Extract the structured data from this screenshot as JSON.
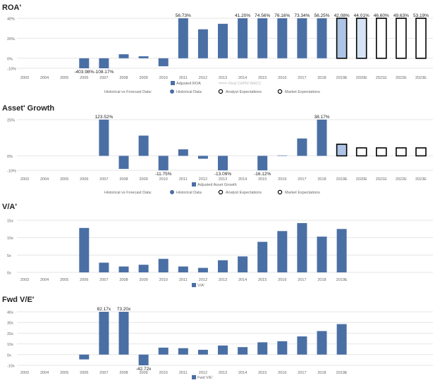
{
  "colors": {
    "historical": "#4a6fa5",
    "analyst_fill": "#adc4e6",
    "analyst_fill_light": "#d6e3f5",
    "market_stroke": "#000000",
    "grid": "#e6e6e6",
    "axis_text": "#666666"
  },
  "legend_text": {
    "hist_vs_forecast": "Historical vs Forecast Data:",
    "historical": "Historical Data",
    "analyst": "Analyst Expectations",
    "market": "Market Expectations"
  },
  "chart_data": [
    {
      "type": "bar",
      "title": "ROA'",
      "categories": [
        "2003",
        "2004",
        "2005",
        "2006",
        "2007",
        "2008",
        "2009",
        "2010",
        "2011",
        "2012",
        "2013",
        "2014",
        "2015",
        "2016",
        "2017",
        "2018",
        "2019E",
        "2020E",
        "2021E",
        "2022E",
        "2023E"
      ],
      "ylim": [
        -10,
        40
      ],
      "yticks": [
        -10,
        0,
        20,
        40
      ],
      "ytick_labels": [
        "-10%",
        "0%",
        "20%",
        "40%"
      ],
      "series": [
        {
          "name": "Adjusted ROA",
          "values": [
            null,
            null,
            null,
            -10,
            -10,
            4,
            2,
            -8,
            40,
            29,
            34.5,
            40,
            40,
            40,
            40,
            40,
            40,
            40,
            40,
            40,
            40
          ],
          "kinds": [
            "h",
            "h",
            "h",
            "h",
            "h",
            "h",
            "h",
            "h",
            "h",
            "h",
            "h",
            "h",
            "h",
            "h",
            "h",
            "h",
            "a",
            "al",
            "m",
            "m",
            "m"
          ]
        }
      ],
      "data_labels": [
        {
          "index": 3,
          "text": "-403.98%",
          "pos": "below"
        },
        {
          "index": 4,
          "text": "-108.17%",
          "pos": "below"
        },
        {
          "index": 8,
          "text": "56.73%",
          "pos": "above"
        },
        {
          "index": 11,
          "text": "41.20%",
          "pos": "above"
        },
        {
          "index": 12,
          "text": "74.56%",
          "pos": "above"
        },
        {
          "index": 13,
          "text": "76.16%",
          "pos": "above"
        },
        {
          "index": 14,
          "text": "73.34%",
          "pos": "above"
        },
        {
          "index": 15,
          "text": "56.25%",
          "pos": "above"
        },
        {
          "index": 16,
          "text": "42.08%",
          "pos": "above"
        },
        {
          "index": 17,
          "text": "44.01%",
          "pos": "above"
        },
        {
          "index": 18,
          "text": "46.60%",
          "pos": "above"
        },
        {
          "index": 19,
          "text": "49.63%",
          "pos": "above"
        },
        {
          "index": 20,
          "text": "53.19%",
          "pos": "above"
        }
      ],
      "legend": [
        "Adjusted ROA",
        "Real CAPM WACC"
      ],
      "show_forecast_legend": true
    },
    {
      "type": "bar",
      "title": "Asset' Growth",
      "categories": [
        "2003",
        "2004",
        "2005",
        "2006",
        "2007",
        "2008",
        "2009",
        "2010",
        "2011",
        "2012",
        "2013",
        "2014",
        "2015",
        "2016",
        "2017",
        "2018",
        "2019E",
        "2020E",
        "2021E",
        "2022E",
        "2023E"
      ],
      "ylim": [
        -10,
        25
      ],
      "yticks": [
        -10,
        0,
        25
      ],
      "ytick_labels": [
        "-10%",
        "0%",
        "25%"
      ],
      "series": [
        {
          "name": "Adjusted Asset Growth",
          "values": [
            null,
            null,
            null,
            null,
            25,
            -9,
            14,
            -10,
            4.5,
            -2,
            -10,
            null,
            -10,
            0.3,
            12,
            25,
            8,
            5.5,
            5.5,
            5.5,
            5.5
          ],
          "kinds": [
            "h",
            "h",
            "h",
            "h",
            "h",
            "h",
            "h",
            "h",
            "h",
            "h",
            "h",
            "h",
            "h",
            "h",
            "h",
            "h",
            "a",
            "m",
            "m",
            "m",
            "m"
          ]
        }
      ],
      "data_labels": [
        {
          "index": 4,
          "text": "123.52%",
          "pos": "above"
        },
        {
          "index": 7,
          "text": "-11.75%",
          "pos": "below"
        },
        {
          "index": 10,
          "text": "-13.09%",
          "pos": "below"
        },
        {
          "index": 12,
          "text": "-16.12%",
          "pos": "below"
        },
        {
          "index": 15,
          "text": "38.17%",
          "pos": "above"
        }
      ],
      "legend": [
        "Adjusted Asset Growth"
      ],
      "show_forecast_legend": true
    },
    {
      "type": "bar",
      "title": "V/A'",
      "categories": [
        "2003",
        "2004",
        "2005",
        "2006",
        "2007",
        "2008",
        "2009",
        "2010",
        "2011",
        "2012",
        "2013",
        "2014",
        "2015",
        "2016",
        "2017",
        "2018",
        "2019E"
      ],
      "ylim": [
        0,
        15
      ],
      "yticks": [
        0,
        5,
        10,
        15
      ],
      "ytick_labels": [
        "0x",
        "5x",
        "10x",
        "15x"
      ],
      "series": [
        {
          "name": "V/A'",
          "values": [
            null,
            null,
            null,
            12.8,
            2.8,
            1.7,
            2.2,
            3.9,
            1.7,
            1.3,
            3.5,
            4.6,
            8.8,
            11.9,
            14.2,
            10.3,
            12.5
          ],
          "kinds": [
            "h",
            "h",
            "h",
            "h",
            "h",
            "h",
            "h",
            "h",
            "h",
            "h",
            "h",
            "h",
            "h",
            "h",
            "h",
            "h",
            "h"
          ]
        }
      ],
      "data_labels": [],
      "legend": [
        "V/A'"
      ],
      "show_forecast_legend": false
    },
    {
      "type": "bar",
      "title": "Fwd V/E'",
      "categories": [
        "2003",
        "2004",
        "2005",
        "2006",
        "2007",
        "2008",
        "2009",
        "2010",
        "2011",
        "2012",
        "2013",
        "2014",
        "2015",
        "2016",
        "2017",
        "2018",
        "2019E"
      ],
      "ylim": [
        -10,
        40
      ],
      "yticks": [
        -10,
        0,
        10,
        20,
        30,
        40
      ],
      "ytick_labels": [
        "-10x",
        "0x",
        "10x",
        "20x",
        "30x",
        "40x"
      ],
      "series": [
        {
          "name": "Fwd V/E'",
          "values": [
            null,
            null,
            null,
            -4.5,
            40,
            40,
            -10,
            6.5,
            6,
            4.5,
            8.5,
            7,
            11.5,
            12.5,
            17,
            22,
            28.5
          ],
          "kinds": [
            "h",
            "h",
            "h",
            "h",
            "h",
            "h",
            "h",
            "h",
            "h",
            "h",
            "h",
            "h",
            "h",
            "h",
            "h",
            "h",
            "h"
          ]
        }
      ],
      "data_labels": [
        {
          "index": 4,
          "text": "82.17x",
          "pos": "above"
        },
        {
          "index": 5,
          "text": "73.20x",
          "pos": "above"
        },
        {
          "index": 6,
          "text": "-42.72x",
          "pos": "below"
        }
      ],
      "legend": [
        "Fwd V/E'"
      ],
      "show_forecast_legend": false
    }
  ]
}
